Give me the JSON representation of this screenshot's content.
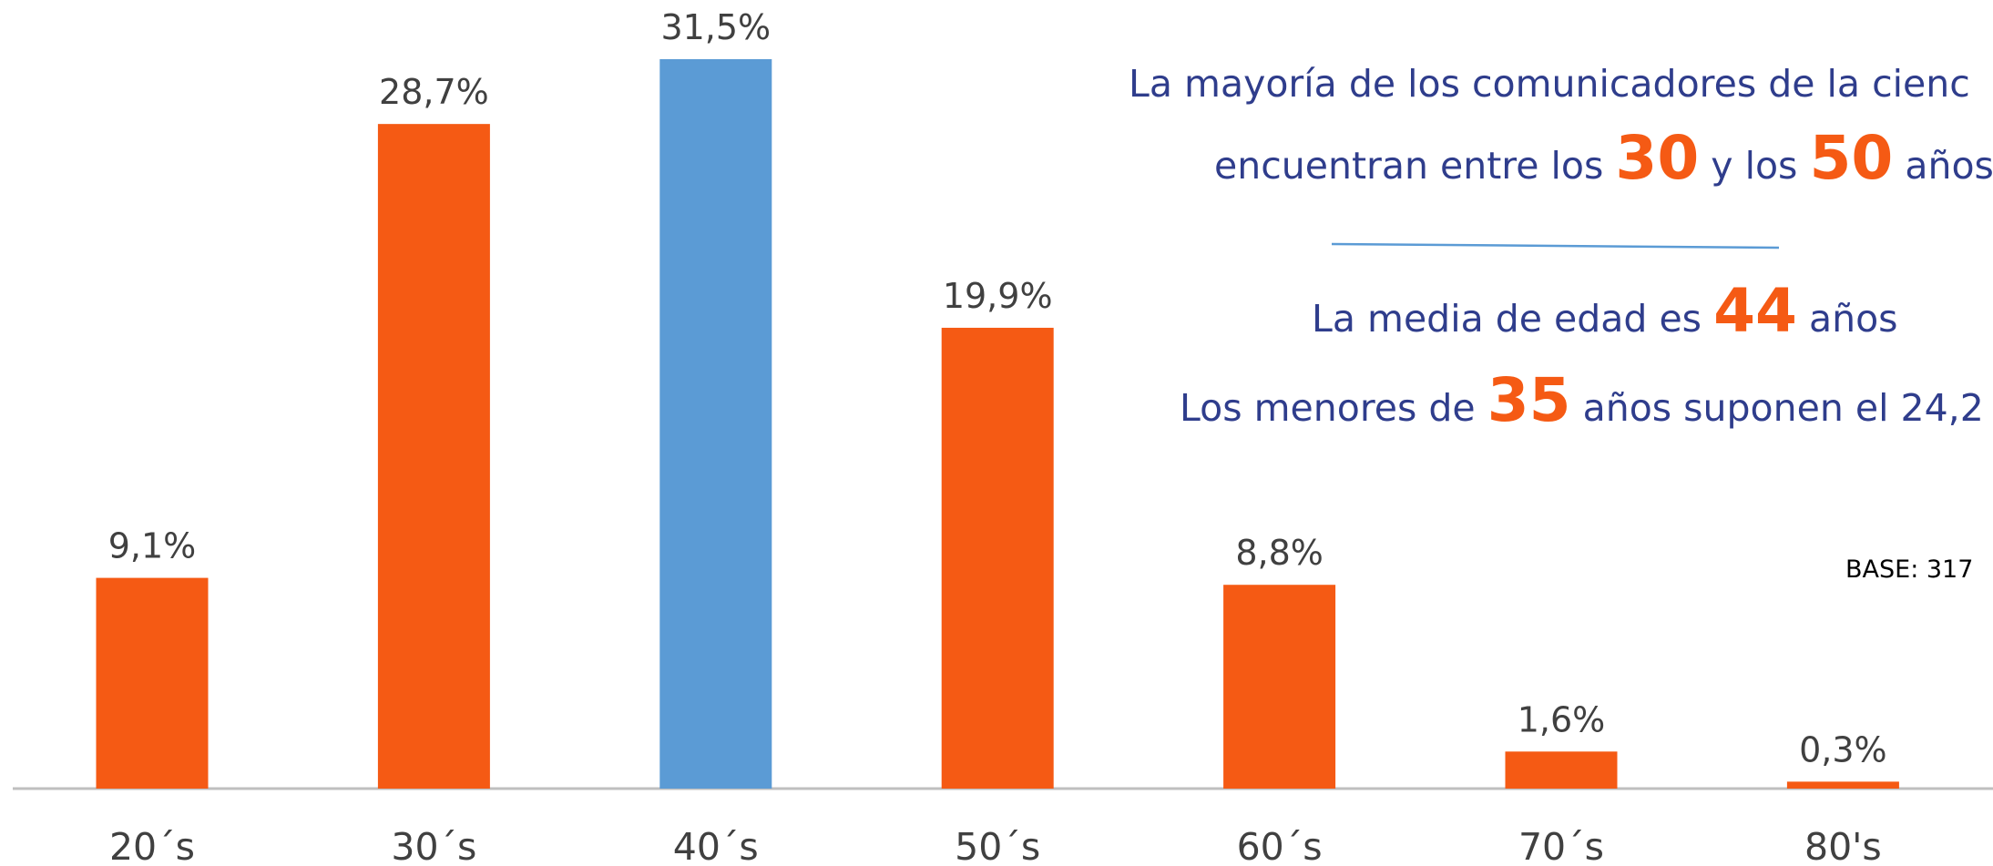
{
  "chart_data": {
    "type": "bar",
    "categories": [
      "20´s",
      "30´s",
      "40´s",
      "50´s",
      "60´s",
      "70´s",
      "80's"
    ],
    "values": [
      9.1,
      28.7,
      31.5,
      19.9,
      8.8,
      1.6,
      0.3
    ],
    "value_labels": [
      "9,1%",
      "28,7%",
      "31,5%",
      "19,9%",
      "8,8%",
      "1,6%",
      "0,3%"
    ],
    "colors": [
      "#f55a14",
      "#f55a14",
      "#5b9bd5",
      "#f55a14",
      "#f55a14",
      "#f55a14",
      "#f55a14"
    ],
    "annotations": [
      [
        "La mayoría de los comunicadores de la cienc"
      ],
      [
        "encuentran entre los ",
        "30",
        " y los ",
        "50",
        " años"
      ],
      [
        "La media de edad es ",
        "44",
        " años"
      ],
      [
        "Los menores de ",
        "35",
        " años suponen el 24,2"
      ]
    ],
    "base_note": "BASE: 317"
  }
}
